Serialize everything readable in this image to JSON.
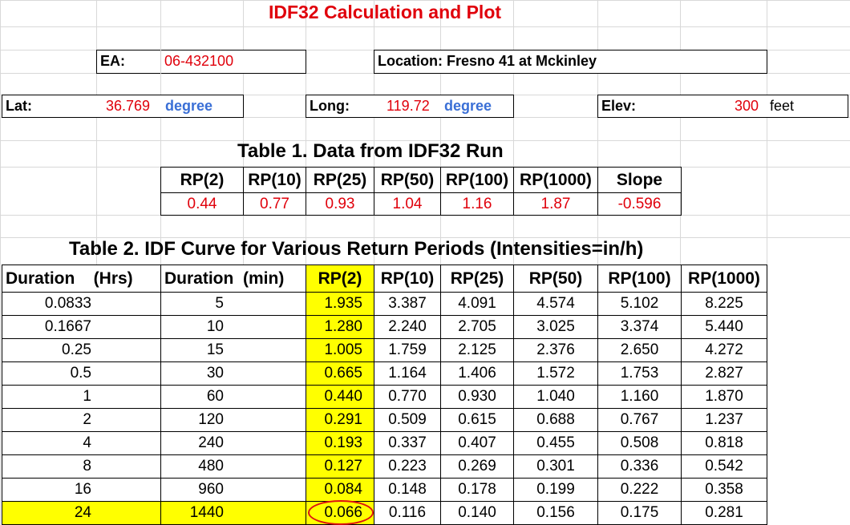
{
  "title": "IDF32 Calculation and Plot",
  "ea": {
    "label": "EA:",
    "value": "06-432100"
  },
  "location": {
    "text": "Location: Fresno 41 at Mckinley"
  },
  "lat": {
    "label": "Lat:",
    "value": "36.769",
    "unit": "degree"
  },
  "long": {
    "label": "Long:",
    "value": "119.72",
    "unit": "degree"
  },
  "elev": {
    "label": "Elev:",
    "value": "300",
    "unit": "feet"
  },
  "table1": {
    "caption": "Table 1.  Data from IDF32 Run",
    "headers": [
      "RP(2)",
      "RP(10)",
      "RP(25)",
      "RP(50)",
      "RP(100)",
      "RP(1000)",
      "Slope"
    ],
    "values": [
      "0.44",
      "0.77",
      "0.93",
      "1.04",
      "1.16",
      "1.87",
      "-0.596"
    ]
  },
  "table2": {
    "caption": "Table 2.  IDF Curve for Various Return Periods (Intensities=in/h)",
    "headers": [
      "Duration    (Hrs)",
      "Duration  (min)",
      "RP(2)",
      "RP(10)",
      "RP(25)",
      "RP(50)",
      "RP(100)",
      "RP(1000)"
    ],
    "rows": [
      [
        "0.0833",
        "5",
        "1.935",
        "3.387",
        "4.091",
        "4.574",
        "5.102",
        "8.225"
      ],
      [
        "0.1667",
        "10",
        "1.280",
        "2.240",
        "2.705",
        "3.025",
        "3.374",
        "5.440"
      ],
      [
        "0.25",
        "15",
        "1.005",
        "1.759",
        "2.125",
        "2.376",
        "2.650",
        "4.272"
      ],
      [
        "0.5",
        "30",
        "0.665",
        "1.164",
        "1.406",
        "1.572",
        "1.753",
        "2.827"
      ],
      [
        "1",
        "60",
        "0.440",
        "0.770",
        "0.930",
        "1.040",
        "1.160",
        "1.870"
      ],
      [
        "2",
        "120",
        "0.291",
        "0.509",
        "0.615",
        "0.688",
        "0.767",
        "1.237"
      ],
      [
        "4",
        "240",
        "0.193",
        "0.337",
        "0.407",
        "0.455",
        "0.508",
        "0.818"
      ],
      [
        "8",
        "480",
        "0.127",
        "0.223",
        "0.269",
        "0.301",
        "0.336",
        "0.542"
      ],
      [
        "16",
        "960",
        "0.084",
        "0.148",
        "0.178",
        "0.199",
        "0.222",
        "0.358"
      ],
      [
        "24",
        "1440",
        "0.066",
        "0.116",
        "0.140",
        "0.156",
        "0.175",
        "0.281"
      ]
    ]
  },
  "colors": {
    "accent_red": "#e0000b",
    "unit_blue": "#3a6fd6",
    "highlight_yellow": "#ffff00",
    "circle_red": "#dd1111"
  }
}
